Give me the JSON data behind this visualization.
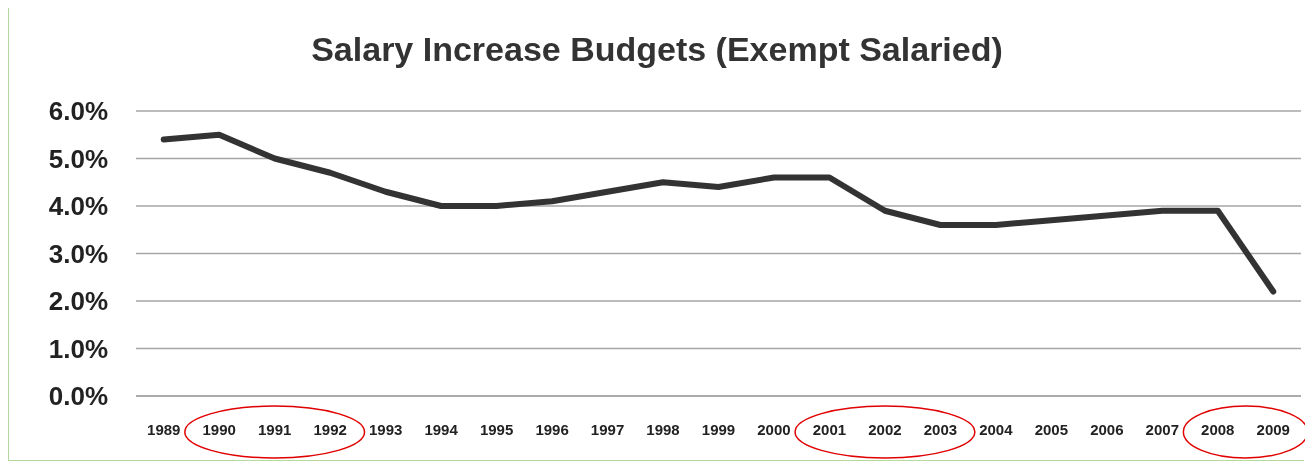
{
  "chart_data": {
    "type": "line",
    "title": "Salary Increase Budgets (Exempt Salaried)",
    "categories": [
      "1989",
      "1990",
      "1991",
      "1992",
      "1993",
      "1994",
      "1995",
      "1996",
      "1997",
      "1998",
      "1999",
      "2000",
      "2001",
      "2002",
      "2003",
      "2004",
      "2005",
      "2006",
      "2007",
      "2008",
      "2009"
    ],
    "series": [
      {
        "color": "#333333",
        "values": [
          5.4,
          5.5,
          5.0,
          4.7,
          4.3,
          4.0,
          4.0,
          4.1,
          4.3,
          4.5,
          4.4,
          4.6,
          4.6,
          3.9,
          3.6,
          3.6,
          3.7,
          3.8,
          3.9,
          3.9,
          2.2
        ]
      }
    ],
    "ylim": [
      0,
      6
    ],
    "yticks": [
      {
        "value": 0,
        "label": "0.0%"
      },
      {
        "value": 1,
        "label": "1.0%"
      },
      {
        "value": 2,
        "label": "2.0%"
      },
      {
        "value": 3,
        "label": "3.0%"
      },
      {
        "value": 4,
        "label": "4.0%"
      },
      {
        "value": 5,
        "label": "5.0%"
      },
      {
        "value": 6,
        "label": "6.0%"
      }
    ],
    "grid": "y",
    "marker": "none",
    "line_style": "solid",
    "legend": false
  }
}
